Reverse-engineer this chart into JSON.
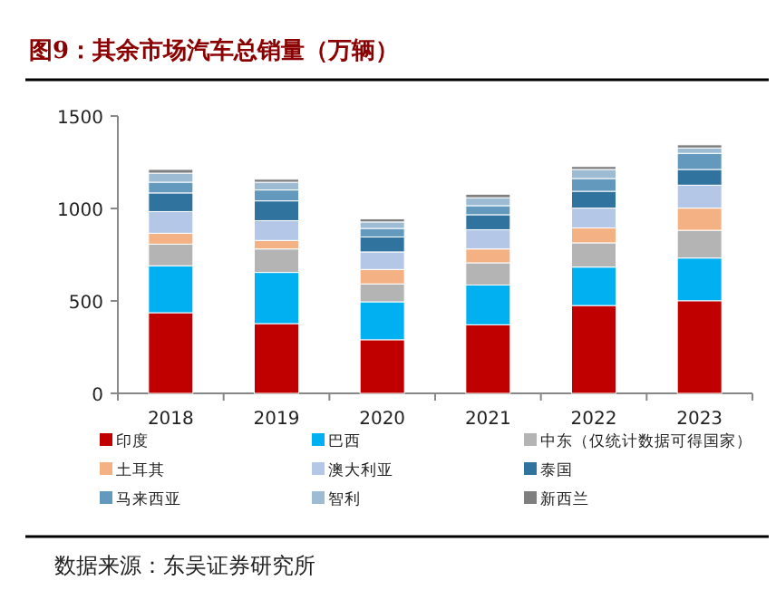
{
  "chart_data": {
    "type": "bar",
    "stacked": true,
    "title": "图9：其余市场汽车总销量（万辆）",
    "annotations": [
      "数据来源：东吴证券研究所"
    ],
    "categories": [
      "2018",
      "2019",
      "2020",
      "2021",
      "2022",
      "2023"
    ],
    "ylim": [
      0,
      1500
    ],
    "yticks": [
      0,
      500,
      1000,
      1500
    ],
    "grid": false,
    "legend": "bottom",
    "series": [
      {
        "name": "印度",
        "color": "#c00000",
        "values": [
          436,
          377,
          290,
          371,
          475,
          501
        ]
      },
      {
        "name": "巴西",
        "color": "#00b0f0",
        "values": [
          254,
          277,
          205,
          215,
          208,
          231
        ]
      },
      {
        "name": "中东（仅统计数据可得国家）",
        "color": "#b4b4b4",
        "values": [
          117,
          127,
          97,
          120,
          131,
          150
        ]
      },
      {
        "name": "土耳其",
        "color": "#f4b183",
        "values": [
          59,
          46,
          78,
          75,
          81,
          120
        ]
      },
      {
        "name": "澳大利亚",
        "color": "#b4c7e7",
        "values": [
          117,
          107,
          95,
          104,
          107,
          124
        ]
      },
      {
        "name": "泰国",
        "color": "#31739f",
        "values": [
          101,
          107,
          81,
          81,
          91,
          85
        ]
      },
      {
        "name": "马来西亚",
        "color": "#6399bc",
        "values": [
          58,
          59,
          46,
          49,
          69,
          87
        ]
      },
      {
        "name": "智利",
        "color": "#9dbbd3",
        "values": [
          49,
          42,
          35,
          43,
          49,
          29
        ]
      },
      {
        "name": "新西兰",
        "color": "#7f7f7f",
        "values": [
          20,
          16,
          17,
          19,
          16,
          17
        ]
      }
    ]
  }
}
